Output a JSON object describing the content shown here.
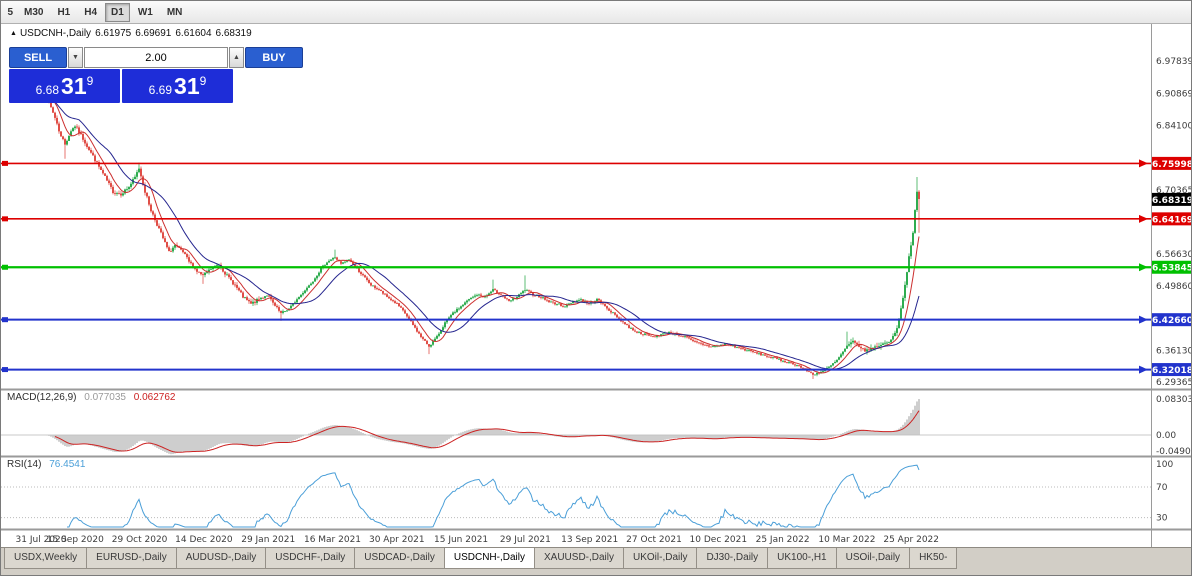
{
  "toolbar": {
    "timeframes": [
      {
        "label": "5",
        "partial": true
      },
      {
        "label": "M30"
      },
      {
        "label": "H1"
      },
      {
        "label": "H4"
      },
      {
        "label": "D1",
        "active": true
      },
      {
        "label": "W1"
      },
      {
        "label": "MN"
      }
    ]
  },
  "chart_header": {
    "collapse_icon": "▲",
    "symbol": "USDCNH-,Daily",
    "open": "6.61975",
    "high": "6.69691",
    "low": "6.61604",
    "close": "6.68319"
  },
  "trade_panel": {
    "sell_label": "SELL",
    "buy_label": "BUY",
    "lot": "2.00",
    "spin_down_icon": "▼",
    "spin_up_icon": "▲",
    "sell_price": {
      "small": "6.68",
      "big": "31",
      "sup": "9"
    },
    "buy_price": {
      "small": "6.69",
      "big": "31",
      "sup": "9"
    },
    "colors": {
      "button": "#2a5fd0",
      "price_box": "#1e2dd8"
    }
  },
  "price_axis": {
    "labels": [
      "6.97839",
      "6.90869",
      "6.84100",
      "6.70365",
      "6.56630",
      "6.49860",
      "6.36130",
      "6.29365"
    ],
    "hlines": [
      {
        "value": 6.75998,
        "label": "6.75998",
        "color": "#dd0000",
        "width": 1.6
      },
      {
        "value": 6.64169,
        "label": "6.64169",
        "color": "#dd0000",
        "width": 1.6
      },
      {
        "value": 6.53845,
        "label": "6.53845",
        "color": "#00c000",
        "width": 2.2
      },
      {
        "value": 6.4266,
        "label": "6.42660",
        "color": "#2233cc",
        "width": 2.0
      },
      {
        "value": 6.32018,
        "label": "6.32018",
        "color": "#2233cc",
        "width": 2.0
      }
    ],
    "current": {
      "value": 6.68319,
      "label": "6.68319",
      "bg": "#000000"
    }
  },
  "indicators": {
    "macd": {
      "name": "MACD(12,26,9)",
      "value": "0.077035",
      "signal": "0.062762",
      "axis": [
        "0.083039",
        "0.00",
        "-0.04905"
      ],
      "max": 0.083039,
      "min": -0.04905
    },
    "rsi": {
      "name": "RSI(14)",
      "value": "76.4541",
      "axis": [
        "100",
        "70",
        "30"
      ],
      "levels": [
        70,
        30
      ]
    }
  },
  "dates": [
    "31 Jul 2020",
    "15 Sep 2020",
    "29 Oct 2020",
    "14 Dec 2020",
    "29 Jan 2021",
    "16 Mar 2021",
    "30 Apr 2021",
    "15 Jun 2021",
    "29 Jul 2021",
    "13 Sep 2021",
    "27 Oct 2021",
    "10 Dec 2021",
    "25 Jan 2022",
    "10 Mar 2022",
    "25 Apr 2022"
  ],
  "tabs": [
    {
      "label": "USDX,Weekly"
    },
    {
      "label": "EURUSD-,Daily"
    },
    {
      "label": "AUDUSD-,Daily"
    },
    {
      "label": "USDCHF-,Daily"
    },
    {
      "label": "USDCAD-,Daily"
    },
    {
      "label": "USDCNH-,Daily",
      "active": true
    },
    {
      "label": "XAUUSD-,Daily"
    },
    {
      "label": "UKOil-,Daily"
    },
    {
      "label": "DJ30-,Daily"
    },
    {
      "label": "UK100-,H1"
    },
    {
      "label": "USOil-,Daily"
    },
    {
      "label": "HK50-"
    }
  ],
  "chart_data": {
    "type": "candlestick",
    "symbol": "USDCNH",
    "timeframe": "Daily",
    "bars": 441,
    "ylim": [
      6.29365,
      6.97839
    ],
    "anchors": [
      [
        0,
        6.91
      ],
      [
        4,
        6.9
      ],
      [
        7,
        6.87
      ],
      [
        10,
        6.83
      ],
      [
        13,
        6.8
      ],
      [
        16,
        6.83
      ],
      [
        18,
        6.84
      ],
      [
        21,
        6.82
      ],
      [
        25,
        6.79
      ],
      [
        29,
        6.76
      ],
      [
        33,
        6.73
      ],
      [
        37,
        6.7
      ],
      [
        41,
        6.695
      ],
      [
        45,
        6.71
      ],
      [
        48,
        6.73
      ],
      [
        50,
        6.75
      ],
      [
        53,
        6.7
      ],
      [
        56,
        6.66
      ],
      [
        59,
        6.63
      ],
      [
        62,
        6.6
      ],
      [
        65,
        6.57
      ],
      [
        68,
        6.585
      ],
      [
        72,
        6.57
      ],
      [
        75,
        6.55
      ],
      [
        79,
        6.53
      ],
      [
        82,
        6.52
      ],
      [
        86,
        6.535
      ],
      [
        90,
        6.545
      ],
      [
        94,
        6.52
      ],
      [
        98,
        6.5
      ],
      [
        102,
        6.475
      ],
      [
        106,
        6.46
      ],
      [
        110,
        6.47
      ],
      [
        114,
        6.48
      ],
      [
        118,
        6.455
      ],
      [
        121,
        6.44
      ],
      [
        125,
        6.45
      ],
      [
        129,
        6.47
      ],
      [
        133,
        6.49
      ],
      [
        137,
        6.51
      ],
      [
        141,
        6.535
      ],
      [
        144,
        6.55
      ],
      [
        148,
        6.56
      ],
      [
        151,
        6.545
      ],
      [
        155,
        6.555
      ],
      [
        158,
        6.54
      ],
      [
        162,
        6.52
      ],
      [
        166,
        6.5
      ],
      [
        170,
        6.49
      ],
      [
        174,
        6.475
      ],
      [
        179,
        6.46
      ],
      [
        183,
        6.44
      ],
      [
        187,
        6.415
      ],
      [
        191,
        6.39
      ],
      [
        195,
        6.37
      ],
      [
        199,
        6.39
      ],
      [
        203,
        6.42
      ],
      [
        207,
        6.44
      ],
      [
        211,
        6.455
      ],
      [
        215,
        6.47
      ],
      [
        219,
        6.48
      ],
      [
        223,
        6.475
      ],
      [
        227,
        6.49
      ],
      [
        231,
        6.48
      ],
      [
        235,
        6.465
      ],
      [
        239,
        6.475
      ],
      [
        243,
        6.49
      ],
      [
        247,
        6.48
      ],
      [
        251,
        6.475
      ],
      [
        255,
        6.465
      ],
      [
        259,
        6.46
      ],
      [
        263,
        6.455
      ],
      [
        267,
        6.465
      ],
      [
        271,
        6.47
      ],
      [
        275,
        6.46
      ],
      [
        279,
        6.47
      ],
      [
        283,
        6.455
      ],
      [
        287,
        6.44
      ],
      [
        291,
        6.425
      ],
      [
        295,
        6.41
      ],
      [
        299,
        6.4
      ],
      [
        303,
        6.395
      ],
      [
        307,
        6.39
      ],
      [
        311,
        6.395
      ],
      [
        315,
        6.4
      ],
      [
        319,
        6.395
      ],
      [
        323,
        6.39
      ],
      [
        327,
        6.38
      ],
      [
        331,
        6.375
      ],
      [
        335,
        6.37
      ],
      [
        339,
        6.37
      ],
      [
        343,
        6.375
      ],
      [
        347,
        6.37
      ],
      [
        351,
        6.365
      ],
      [
        355,
        6.36
      ],
      [
        359,
        6.355
      ],
      [
        363,
        6.35
      ],
      [
        367,
        6.345
      ],
      [
        371,
        6.34
      ],
      [
        375,
        6.335
      ],
      [
        379,
        6.33
      ],
      [
        383,
        6.32
      ],
      [
        387,
        6.31
      ],
      [
        391,
        6.315
      ],
      [
        395,
        6.325
      ],
      [
        399,
        6.34
      ],
      [
        404,
        6.37
      ],
      [
        407,
        6.38
      ],
      [
        410,
        6.37
      ],
      [
        413,
        6.36
      ],
      [
        416,
        6.365
      ],
      [
        419,
        6.37
      ],
      [
        422,
        6.375
      ],
      [
        425,
        6.38
      ],
      [
        427,
        6.39
      ],
      [
        429,
        6.41
      ],
      [
        431,
        6.45
      ],
      [
        433,
        6.5
      ],
      [
        435,
        6.56
      ],
      [
        437,
        6.61
      ],
      [
        438,
        6.66
      ],
      [
        439,
        6.7
      ],
      [
        440,
        6.683
      ]
    ],
    "wick_events": [
      {
        "i": 13,
        "low": 6.77
      },
      {
        "i": 50,
        "high": 6.762
      },
      {
        "i": 82,
        "low": 6.503
      },
      {
        "i": 121,
        "low": 6.424
      },
      {
        "i": 148,
        "high": 6.576
      },
      {
        "i": 195,
        "low": 6.353
      },
      {
        "i": 227,
        "high": 6.512
      },
      {
        "i": 243,
        "high": 6.521
      },
      {
        "i": 387,
        "low": 6.3
      },
      {
        "i": 404,
        "high": 6.401
      },
      {
        "i": 439,
        "high": 6.731
      },
      {
        "i": 440,
        "low": 6.612
      }
    ],
    "colors": {
      "up": "#17a33c",
      "down": "#dd3b33",
      "ma_fast": "#cc2f2f",
      "ma_slow": "#26268f",
      "macd_hist": "#c2c2c2",
      "macd_signal": "#cc2222",
      "rsi_line": "#4b9fd8"
    }
  }
}
